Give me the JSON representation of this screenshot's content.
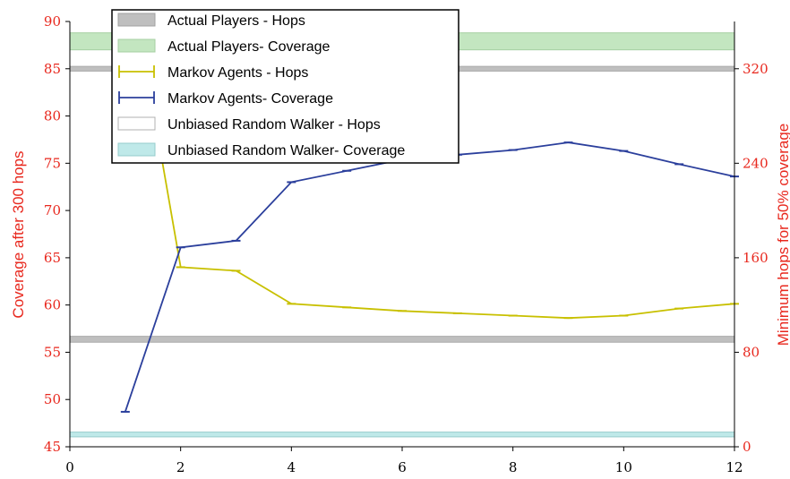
{
  "chart_data": {
    "type": "line",
    "xlim": [
      0,
      12
    ],
    "x_ticks": [
      "0",
      "2",
      "4",
      "6",
      "8",
      "10",
      "12"
    ],
    "y_left": {
      "label": "Coverage after 300 hops",
      "lim": [
        45,
        90
      ],
      "ticks": [
        "45",
        "50",
        "55",
        "60",
        "65",
        "70",
        "75",
        "80",
        "85",
        "90"
      ],
      "color": "#e8281e"
    },
    "y_right": {
      "label": "Minimum hops for 50% coverage",
      "lim": [
        0,
        360
      ],
      "ticks": [
        "0",
        "80",
        "160",
        "240",
        "320"
      ],
      "color": "#e8281e"
    },
    "bands": [
      {
        "name": "Actual Players - Hops",
        "axis": "right",
        "value": 320,
        "half_width": 2,
        "color": "#bfbfbf",
        "edge": "#aaaaaa"
      },
      {
        "name": "Actual Players- Coverage",
        "axis": "left",
        "value": 87.9,
        "half_width": 0.9,
        "color": "#c3e6c0",
        "edge": "#a6cfa2"
      },
      {
        "name": "Unbiased Random Walker - Hops",
        "axis": "right",
        "value": 91,
        "half_width": 2.5,
        "color": "#bfbfbf",
        "edge": "#aaaaaa"
      },
      {
        "name": "Unbiased Random Walker- Coverage",
        "axis": "left",
        "value": 46.3,
        "half_width": 0.25,
        "color": "#bfe9e9",
        "edge": "#96cccc"
      }
    ],
    "series": [
      {
        "name": "Markov Agents - Hops",
        "axis": "right",
        "color": "#c8c000",
        "x": [
          1.6,
          2,
          3,
          4,
          5,
          6,
          7,
          8,
          9,
          10,
          11,
          12
        ],
        "y": [
          260,
          152,
          149,
          121,
          118,
          115,
          113,
          111,
          109,
          111,
          117,
          121
        ]
      },
      {
        "name": "Markov Agents- Coverage",
        "axis": "left",
        "color": "#2b3f9c",
        "x": [
          1,
          2,
          3,
          4,
          5,
          6,
          7,
          8,
          9,
          10,
          11,
          12
        ],
        "y": [
          48.7,
          66.1,
          66.8,
          73.0,
          74.2,
          75.4,
          75.9,
          76.4,
          77.2,
          76.3,
          74.9,
          73.6
        ]
      }
    ],
    "legend": {
      "placement": "top-left",
      "entries": [
        "Actual Players - Hops",
        "Actual Players- Coverage",
        "Markov Agents - Hops",
        "Markov Agents- Coverage",
        "Unbiased Random Walker - Hops",
        "Unbiased Random Walker- Coverage"
      ]
    }
  }
}
